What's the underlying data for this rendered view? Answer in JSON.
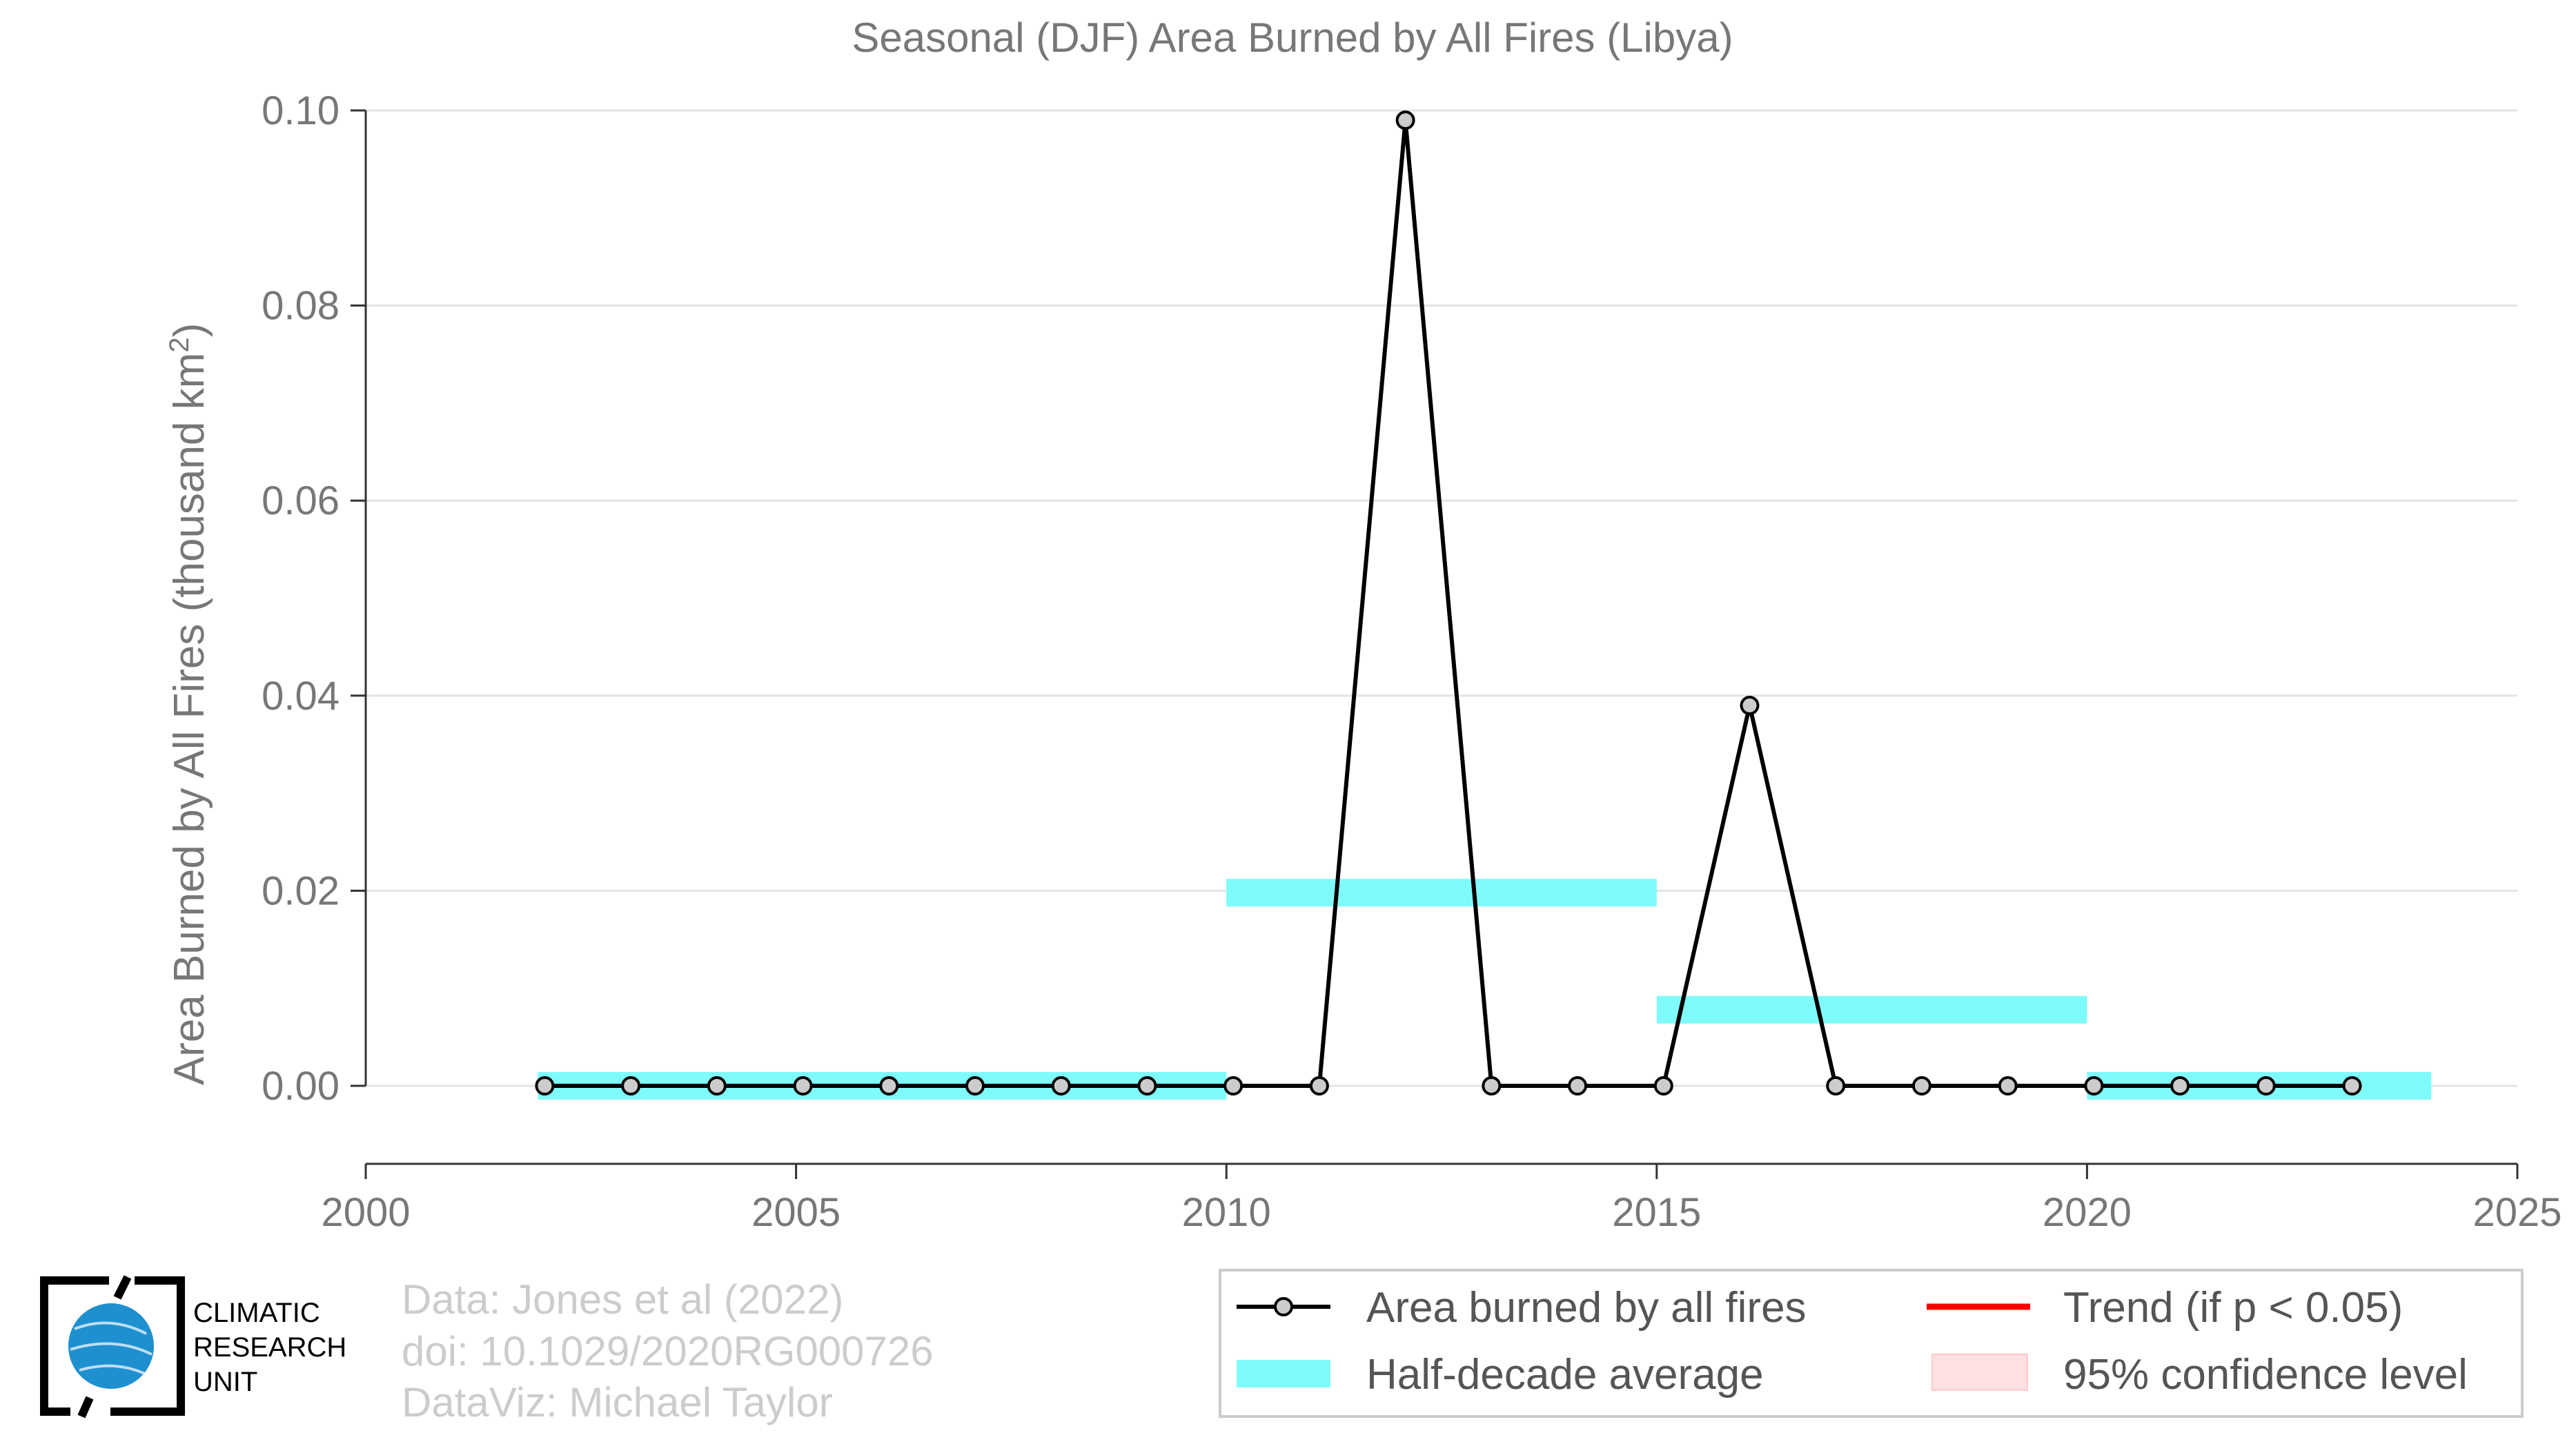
{
  "chart_data": {
    "type": "line",
    "title": "Seasonal (DJF) Area Burned by All Fires (Libya)",
    "ylabel_main": "Area Burned by All Fires (thousand km",
    "ylabel_sup": "2",
    "ylabel_end": ")",
    "xlim": [
      2000,
      2025
    ],
    "ylim": [
      -0.008,
      0.1
    ],
    "xticks": [
      2000,
      2005,
      2010,
      2015,
      2020,
      2025
    ],
    "yticks": [
      0.0,
      0.02,
      0.04,
      0.06,
      0.08,
      0.1
    ],
    "ytick_labels": [
      "0.00",
      "0.02",
      "0.04",
      "0.06",
      "0.08",
      "0.10"
    ],
    "grid": "horizontal",
    "series": [
      {
        "name": "Area burned by all fires",
        "color": "#000000",
        "marker_fill": "#cccccc",
        "x": [
          2002,
          2003,
          2004,
          2005,
          2006,
          2007,
          2008,
          2009,
          2010,
          2011,
          2012,
          2013,
          2014,
          2015,
          2016,
          2017,
          2018,
          2019,
          2020,
          2021,
          2022,
          2023
        ],
        "y": [
          0,
          0,
          0,
          0,
          0,
          0,
          0,
          0,
          0,
          0,
          0.099,
          0,
          0,
          0,
          0.039,
          0,
          0,
          0,
          0,
          0,
          0,
          0
        ]
      }
    ],
    "half_decade_average": {
      "name": "Half-decade average",
      "color": "#7ffbfb",
      "segments": [
        {
          "x0": 2002,
          "x1": 2010,
          "y": 0.0
        },
        {
          "x0": 2010,
          "x1": 2015,
          "y": 0.0198
        },
        {
          "x0": 2015,
          "x1": 2020,
          "y": 0.0078
        },
        {
          "x0": 2020,
          "x1": 2024,
          "y": 0.0
        }
      ]
    },
    "legend": {
      "position": "bottom-right",
      "entries": [
        {
          "label": "Area burned by all fires",
          "kind": "line-marker",
          "color": "#000000"
        },
        {
          "label": "Trend (if p < 0.05)",
          "kind": "line",
          "color": "#ff0000"
        },
        {
          "label": "Half-decade average",
          "kind": "band",
          "color": "#7ffbfb"
        },
        {
          "label": "95% confidence level",
          "kind": "patch",
          "color": "#ffe0e0"
        }
      ]
    }
  },
  "credits": {
    "line1": "Data: Jones et al (2022)",
    "line2": "doi: 10.1029/2020RG000726",
    "line3": "DataViz: Michael Taylor"
  },
  "logo": {
    "line1": "CLIMATIC",
    "line2": "RESEARCH",
    "line3": "UNIT",
    "globe_color": "#1e90d0"
  }
}
